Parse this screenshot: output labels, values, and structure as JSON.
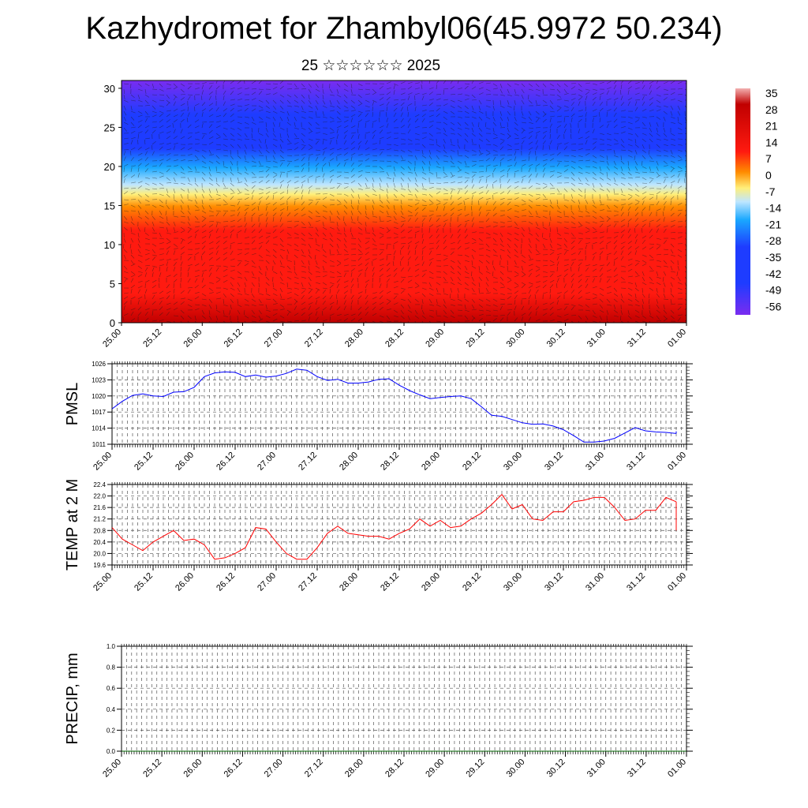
{
  "title": "Kazhydromet for Zhambyl06(45.9972 50.234)",
  "subtitle": "25 ☆☆☆☆☆☆ 2025",
  "time_ticks": [
    "25.00",
    "25.12",
    "26.00",
    "26.12",
    "27.00",
    "27.12",
    "28.00",
    "28.12",
    "29.00",
    "29.12",
    "30.00",
    "30.12",
    "31.00",
    "31.12",
    "01.00"
  ],
  "chart_data": [
    {
      "id": "cross-section",
      "type": "heatmap",
      "title": "",
      "y_ticks": [
        0,
        5,
        10,
        15,
        20,
        25,
        30
      ],
      "ylim": [
        0,
        31
      ],
      "colorbar_labels": [
        "35",
        "28",
        "21",
        "14",
        "7",
        "0",
        "-7",
        "-14",
        "-21",
        "-28",
        "-35",
        "-42",
        "-49",
        "-56"
      ],
      "colorbar_range": [
        -60,
        38
      ],
      "colors": {
        "hot": "#c00000",
        "red": "#ff1a10",
        "orange": "#ff8c00",
        "yellow": "#ffef7a",
        "pale": "#bfe6ff",
        "cyan": "#1aa8ff",
        "blue": "#1e3cff",
        "violet": "#7a2cf0"
      }
    },
    {
      "id": "pmsl",
      "type": "line",
      "ylabel": "PMSL",
      "y_ticks": [
        "1011",
        "1014",
        "1017",
        "1020",
        "1023",
        "1026"
      ],
      "ylim": [
        1011,
        1026
      ],
      "color": "#0000ff",
      "x": [
        0,
        1,
        2,
        3,
        4,
        5,
        6,
        7,
        8,
        9,
        10,
        11,
        12,
        13,
        14,
        15,
        16,
        17,
        18,
        19,
        20,
        21,
        22,
        23,
        24,
        25,
        26,
        27,
        28,
        29,
        30,
        31,
        32,
        33,
        34,
        35,
        36,
        37,
        38,
        39,
        40,
        41,
        42,
        43,
        44,
        45,
        46,
        47,
        48,
        49,
        50,
        51,
        52,
        53,
        54,
        55
      ],
      "values": [
        1017.6,
        1019.0,
        1020.1,
        1020.4,
        1020.0,
        1019.9,
        1020.7,
        1020.8,
        1021.6,
        1023.6,
        1024.3,
        1024.5,
        1024.4,
        1023.6,
        1023.9,
        1023.5,
        1023.7,
        1024.2,
        1025.0,
        1024.8,
        1023.6,
        1022.9,
        1023.1,
        1022.4,
        1022.4,
        1022.6,
        1023.1,
        1023.2,
        1022.0,
        1021.0,
        1020.2,
        1019.5,
        1019.7,
        1019.9,
        1020.0,
        1019.5,
        1018.0,
        1016.4,
        1016.2,
        1015.6,
        1015.0,
        1014.7,
        1014.8,
        1014.4,
        1013.7,
        1012.6,
        1011.4,
        1011.4,
        1011.6,
        1012.1,
        1013.1,
        1014.1,
        1013.5,
        1013.3,
        1013.2,
        1013.0
      ],
      "x_extra": [
        55
      ],
      "values_extra": [
        1013.4
      ]
    },
    {
      "id": "temp2m",
      "type": "line",
      "ylabel": "TEMP at 2 M",
      "y_ticks": [
        "19.6",
        "20.0",
        "20.4",
        "20.8",
        "21.2",
        "21.6",
        "22.0",
        "22.4"
      ],
      "ylim": [
        19.6,
        22.4
      ],
      "color": "#ff0000",
      "x": [
        0,
        1,
        2,
        3,
        4,
        5,
        6,
        7,
        8,
        9,
        10,
        11,
        12,
        13,
        14,
        15,
        16,
        17,
        18,
        19,
        20,
        21,
        22,
        23,
        24,
        25,
        26,
        27,
        28,
        29,
        30,
        31,
        32,
        33,
        34,
        35,
        36,
        37,
        38,
        39,
        40,
        41,
        42,
        43,
        44,
        45,
        46,
        47,
        48,
        49,
        50,
        51,
        52,
        53,
        54,
        55
      ],
      "values": [
        20.9,
        20.5,
        20.3,
        20.1,
        20.4,
        20.6,
        20.8,
        20.45,
        20.5,
        20.3,
        19.8,
        19.85,
        20.0,
        20.2,
        20.9,
        20.85,
        20.4,
        20.0,
        19.8,
        19.8,
        20.2,
        20.7,
        20.95,
        20.7,
        20.65,
        20.6,
        20.6,
        20.5,
        20.7,
        20.85,
        21.2,
        20.95,
        21.15,
        20.9,
        20.95,
        21.2,
        21.4,
        21.7,
        22.05,
        21.55,
        21.7,
        21.2,
        21.15,
        21.45,
        21.45,
        21.8,
        21.85,
        21.95,
        21.95,
        21.6,
        21.15,
        21.2,
        21.5,
        21.5,
        21.95,
        21.8
      ],
      "x_extra": [
        55
      ],
      "values_extra": [
        20.8
      ]
    },
    {
      "id": "precip",
      "type": "line",
      "ylabel": "PRECIP, mm",
      "y_ticks": [
        "0.0",
        "0.2",
        "0.4",
        "0.6",
        "0.8",
        "1.0"
      ],
      "ylim": [
        0,
        1
      ],
      "color": "#006400",
      "x": [
        0,
        56
      ],
      "values": [
        0,
        0
      ]
    }
  ]
}
